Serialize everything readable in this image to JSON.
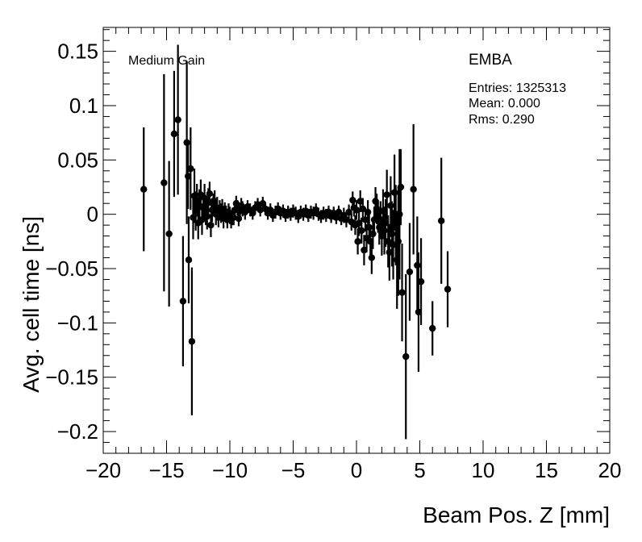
{
  "chart_data": {
    "type": "scatter",
    "xlabel": "Beam Pos. Z [mm]",
    "ylabel": "Avg. cell time [ns]",
    "xlim": [
      -20,
      20
    ],
    "ylim": [
      -0.22,
      0.172
    ],
    "xticks": [
      -20,
      -15,
      -10,
      -5,
      0,
      5,
      10,
      15,
      20
    ],
    "xtick_labels": [
      "−20",
      "−15",
      "−10",
      "−5",
      "0",
      "5",
      "10",
      "15",
      "20"
    ],
    "yticks": [
      -0.2,
      -0.15,
      -0.1,
      -0.05,
      0,
      0.05,
      0.1,
      0.15
    ],
    "ytick_labels": [
      "−0.2",
      "−0.15",
      "−0.1",
      "−0.05",
      "0",
      "0.05",
      "0.1",
      "0.15"
    ],
    "grid": false,
    "annotations": {
      "gain": "Medium Gain",
      "partition": "EMBA",
      "entries": "Entries: 1325313",
      "mean": "Mean: 0.000",
      "rms": "Rms: 0.290"
    },
    "points": [
      {
        "x": -16.8,
        "y": 0.023,
        "err": 0.057
      },
      {
        "x": -15.2,
        "y": 0.029,
        "err": 0.1
      },
      {
        "x": -14.8,
        "y": -0.018,
        "err": 0.067
      },
      {
        "x": -14.4,
        "y": 0.074,
        "err": 0.058
      },
      {
        "x": -14.1,
        "y": 0.087,
        "err": 0.069
      },
      {
        "x": -13.7,
        "y": -0.08,
        "err": 0.06
      },
      {
        "x": -13.4,
        "y": 0.066,
        "err": 0.075
      },
      {
        "x": -13.3,
        "y": 0.035,
        "err": 0.03
      },
      {
        "x": -13.25,
        "y": -0.042,
        "err": 0.04
      },
      {
        "x": -13.1,
        "y": 0.042,
        "err": 0.038
      },
      {
        "x": -13.0,
        "y": -0.117,
        "err": 0.068
      },
      {
        "x": -12.9,
        "y": -0.003,
        "err": 0.02
      },
      {
        "x": -12.8,
        "y": 0.017,
        "err": 0.025
      },
      {
        "x": -12.7,
        "y": 0.003,
        "err": 0.018
      },
      {
        "x": -12.6,
        "y": 0.013,
        "err": 0.015
      },
      {
        "x": -12.5,
        "y": -0.008,
        "err": 0.015
      },
      {
        "x": -12.4,
        "y": 0.008,
        "err": 0.015
      },
      {
        "x": -12.3,
        "y": 0.018,
        "err": 0.014
      },
      {
        "x": -12.2,
        "y": -0.005,
        "err": 0.014
      },
      {
        "x": -12.1,
        "y": 0.006,
        "err": 0.013
      },
      {
        "x": -12.0,
        "y": 0.015,
        "err": 0.013
      },
      {
        "x": -11.9,
        "y": 0.002,
        "err": 0.012
      },
      {
        "x": -11.8,
        "y": -0.002,
        "err": 0.012
      },
      {
        "x": -11.7,
        "y": 0.012,
        "err": 0.012
      },
      {
        "x": -11.6,
        "y": 0.019,
        "err": 0.011
      },
      {
        "x": -11.5,
        "y": -0.01,
        "err": 0.011
      },
      {
        "x": -11.4,
        "y": 0.004,
        "err": 0.011
      },
      {
        "x": -11.3,
        "y": 0.009,
        "err": 0.01
      },
      {
        "x": -11.2,
        "y": 0.012,
        "err": 0.01
      },
      {
        "x": -11.1,
        "y": 0.0,
        "err": 0.01
      },
      {
        "x": -11.0,
        "y": 0.006,
        "err": 0.01
      },
      {
        "x": -10.9,
        "y": -0.003,
        "err": 0.009
      },
      {
        "x": -10.8,
        "y": 0.004,
        "err": 0.009
      },
      {
        "x": -10.7,
        "y": 0.001,
        "err": 0.009
      },
      {
        "x": -10.6,
        "y": 0.005,
        "err": 0.009
      },
      {
        "x": -10.5,
        "y": -0.004,
        "err": 0.009
      },
      {
        "x": -10.4,
        "y": 0.003,
        "err": 0.008
      },
      {
        "x": -10.3,
        "y": 0.0,
        "err": 0.008
      },
      {
        "x": -10.2,
        "y": -0.005,
        "err": 0.008
      },
      {
        "x": -10.1,
        "y": 0.002,
        "err": 0.008
      },
      {
        "x": -10.0,
        "y": -0.001,
        "err": 0.008
      },
      {
        "x": -9.9,
        "y": -0.005,
        "err": 0.008
      },
      {
        "x": -9.8,
        "y": -0.002,
        "err": 0.008
      },
      {
        "x": -9.7,
        "y": -0.003,
        "err": 0.007
      },
      {
        "x": -9.6,
        "y": 0.004,
        "err": 0.007
      },
      {
        "x": -9.5,
        "y": 0.01,
        "err": 0.007
      },
      {
        "x": -9.4,
        "y": 0.006,
        "err": 0.007
      },
      {
        "x": -9.3,
        "y": -0.004,
        "err": 0.007
      },
      {
        "x": -9.2,
        "y": 0.003,
        "err": 0.007
      },
      {
        "x": -9.1,
        "y": 0.008,
        "err": 0.007
      },
      {
        "x": -9.0,
        "y": 0.005,
        "err": 0.007
      },
      {
        "x": -8.8,
        "y": 0.002,
        "err": 0.007
      },
      {
        "x": -8.6,
        "y": 0.007,
        "err": 0.006
      },
      {
        "x": -8.4,
        "y": 0.004,
        "err": 0.006
      },
      {
        "x": -8.2,
        "y": 0.001,
        "err": 0.006
      },
      {
        "x": -8.0,
        "y": 0.006,
        "err": 0.006
      },
      {
        "x": -7.8,
        "y": 0.009,
        "err": 0.006
      },
      {
        "x": -7.6,
        "y": 0.004,
        "err": 0.006
      },
      {
        "x": -7.4,
        "y": 0.01,
        "err": 0.006
      },
      {
        "x": -7.2,
        "y": 0.005,
        "err": 0.006
      },
      {
        "x": -7.0,
        "y": 0.001,
        "err": 0.006
      },
      {
        "x": -6.8,
        "y": 0.004,
        "err": 0.006
      },
      {
        "x": -6.6,
        "y": -0.001,
        "err": 0.006
      },
      {
        "x": -6.4,
        "y": 0.002,
        "err": 0.006
      },
      {
        "x": -6.2,
        "y": 0.005,
        "err": 0.006
      },
      {
        "x": -6.0,
        "y": 0.001,
        "err": 0.006
      },
      {
        "x": -5.8,
        "y": 0.003,
        "err": 0.006
      },
      {
        "x": -5.6,
        "y": -0.001,
        "err": 0.006
      },
      {
        "x": -5.4,
        "y": 0.002,
        "err": 0.006
      },
      {
        "x": -5.2,
        "y": 0.0,
        "err": 0.006
      },
      {
        "x": -5.0,
        "y": 0.003,
        "err": 0.006
      },
      {
        "x": -4.8,
        "y": 0.001,
        "err": 0.006
      },
      {
        "x": -4.6,
        "y": -0.002,
        "err": 0.006
      },
      {
        "x": -4.4,
        "y": 0.002,
        "err": 0.006
      },
      {
        "x": -4.2,
        "y": 0.0,
        "err": 0.006
      },
      {
        "x": -4.0,
        "y": 0.003,
        "err": 0.006
      },
      {
        "x": -3.8,
        "y": -0.001,
        "err": 0.006
      },
      {
        "x": -3.6,
        "y": 0.002,
        "err": 0.006
      },
      {
        "x": -3.4,
        "y": 0.001,
        "err": 0.006
      },
      {
        "x": -3.2,
        "y": 0.004,
        "err": 0.006
      },
      {
        "x": -3.0,
        "y": 0.0,
        "err": 0.006
      },
      {
        "x": -2.8,
        "y": -0.002,
        "err": 0.006
      },
      {
        "x": -2.6,
        "y": 0.001,
        "err": 0.006
      },
      {
        "x": -2.4,
        "y": -0.001,
        "err": 0.006
      },
      {
        "x": -2.2,
        "y": 0.002,
        "err": 0.006
      },
      {
        "x": -2.0,
        "y": -0.002,
        "err": 0.006
      },
      {
        "x": -1.8,
        "y": 0.001,
        "err": 0.006
      },
      {
        "x": -1.6,
        "y": -0.003,
        "err": 0.006
      },
      {
        "x": -1.4,
        "y": 0.002,
        "err": 0.006
      },
      {
        "x": -1.2,
        "y": -0.004,
        "err": 0.006
      },
      {
        "x": -1.0,
        "y": -0.001,
        "err": 0.007
      },
      {
        "x": -0.8,
        "y": -0.005,
        "err": 0.007
      },
      {
        "x": -0.6,
        "y": 0.002,
        "err": 0.007
      },
      {
        "x": -0.4,
        "y": -0.007,
        "err": 0.008
      },
      {
        "x": -0.3,
        "y": 0.013,
        "err": 0.008
      },
      {
        "x": -0.2,
        "y": 0.006,
        "err": 0.008
      },
      {
        "x": -0.1,
        "y": -0.01,
        "err": 0.009
      },
      {
        "x": 0.0,
        "y": 0.004,
        "err": 0.009
      },
      {
        "x": 0.1,
        "y": -0.025,
        "err": 0.012
      },
      {
        "x": 0.2,
        "y": -0.008,
        "err": 0.012
      },
      {
        "x": 0.3,
        "y": 0.012,
        "err": 0.01
      },
      {
        "x": 0.4,
        "y": -0.015,
        "err": 0.012
      },
      {
        "x": 0.5,
        "y": 0.005,
        "err": 0.01
      },
      {
        "x": 0.6,
        "y": -0.033,
        "err": 0.014
      },
      {
        "x": 0.7,
        "y": -0.005,
        "err": 0.011
      },
      {
        "x": 0.8,
        "y": -0.022,
        "err": 0.013
      },
      {
        "x": 0.9,
        "y": 0.002,
        "err": 0.011
      },
      {
        "x": 1.0,
        "y": -0.012,
        "err": 0.012
      },
      {
        "x": 1.1,
        "y": -0.025,
        "err": 0.014
      },
      {
        "x": 1.2,
        "y": -0.04,
        "err": 0.015
      },
      {
        "x": 1.3,
        "y": -0.018,
        "err": 0.014
      },
      {
        "x": 1.4,
        "y": -0.005,
        "err": 0.012
      },
      {
        "x": 1.5,
        "y": 0.012,
        "err": 0.013
      },
      {
        "x": 1.6,
        "y": 0.005,
        "err": 0.014
      },
      {
        "x": 1.7,
        "y": -0.002,
        "err": 0.015
      },
      {
        "x": 1.8,
        "y": -0.012,
        "err": 0.016
      },
      {
        "x": 1.9,
        "y": -0.005,
        "err": 0.017
      },
      {
        "x": 2.0,
        "y": -0.02,
        "err": 0.018
      },
      {
        "x": 2.1,
        "y": 0.003,
        "err": 0.02
      },
      {
        "x": 2.2,
        "y": -0.015,
        "err": 0.022
      },
      {
        "x": 2.3,
        "y": -0.008,
        "err": 0.022
      },
      {
        "x": 2.4,
        "y": 0.018,
        "err": 0.023
      },
      {
        "x": 2.5,
        "y": -0.025,
        "err": 0.024
      },
      {
        "x": 2.6,
        "y": -0.035,
        "err": 0.026
      },
      {
        "x": 2.7,
        "y": 0.008,
        "err": 0.027
      },
      {
        "x": 2.8,
        "y": -0.018,
        "err": 0.03
      },
      {
        "x": 2.9,
        "y": -0.028,
        "err": 0.032
      },
      {
        "x": 3.0,
        "y": 0.02,
        "err": 0.035
      },
      {
        "x": 3.1,
        "y": -0.01,
        "err": 0.037
      },
      {
        "x": 3.2,
        "y": -0.042,
        "err": 0.045
      },
      {
        "x": 3.3,
        "y": -0.025,
        "err": 0.05
      },
      {
        "x": 3.4,
        "y": 0.0,
        "err": 0.06
      },
      {
        "x": 3.5,
        "y": 0.025,
        "err": 0.035
      },
      {
        "x": 3.6,
        "y": -0.072,
        "err": 0.045
      },
      {
        "x": 3.9,
        "y": -0.131,
        "err": 0.076
      },
      {
        "x": 4.2,
        "y": -0.053,
        "err": 0.045
      },
      {
        "x": 4.5,
        "y": 0.023,
        "err": 0.06
      },
      {
        "x": 4.8,
        "y": -0.047,
        "err": 0.045
      },
      {
        "x": 4.9,
        "y": -0.09,
        "err": 0.055
      },
      {
        "x": 5.1,
        "y": -0.062,
        "err": 0.04
      },
      {
        "x": 6.0,
        "y": -0.105,
        "err": 0.025
      },
      {
        "x": 6.7,
        "y": -0.006,
        "err": 0.058
      },
      {
        "x": 7.2,
        "y": -0.069,
        "err": 0.035
      }
    ]
  }
}
